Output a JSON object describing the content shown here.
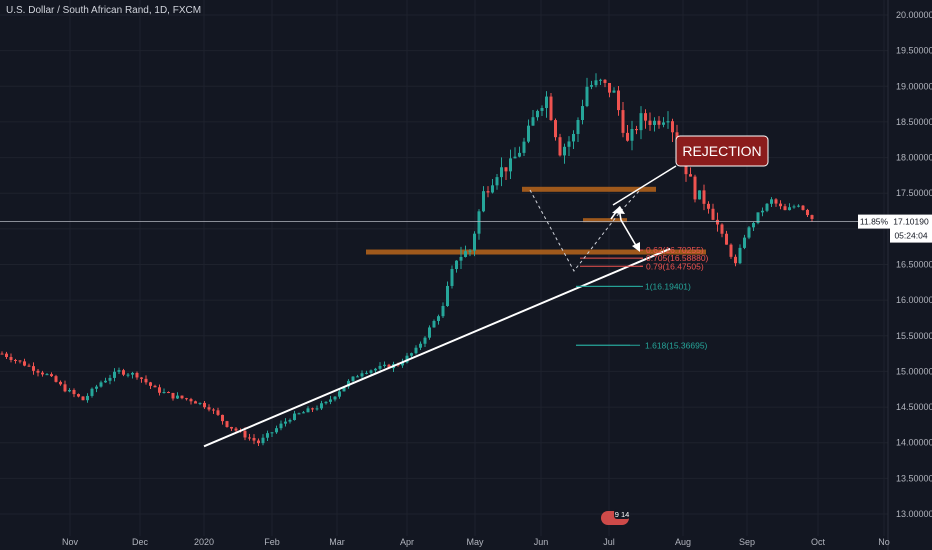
{
  "header": {
    "title": "U.S. Dollar / South African Rand, 1D, FXCM"
  },
  "chart_data": {
    "type": "candlestick",
    "title": "U.S. Dollar / South African Rand, 1D, FXCM",
    "ylim": [
      12.9,
      20.05
    ],
    "y_ticks": [
      "13.00000",
      "13.50000",
      "14.00000",
      "14.50000",
      "15.00000",
      "15.50000",
      "16.00000",
      "16.50000",
      "17.00000",
      "17.50000",
      "18.00000",
      "18.50000",
      "19.00000",
      "19.50000",
      "20.00000"
    ],
    "x_ticks": [
      "Nov",
      "Dec",
      "2020",
      "Feb",
      "Mar",
      "Apr",
      "May",
      "Jun",
      "Jul",
      "Aug",
      "Sep",
      "Oct",
      "No"
    ],
    "current_price": "17.10190",
    "current_pct": "11.85%",
    "countdown": "05:24:04",
    "annotation": "REJECTION",
    "fib_levels": [
      {
        "label": "0.62(16.70255)",
        "value": 16.70255,
        "color": "#ef5350"
      },
      {
        "label": "0.705(16.58880)",
        "value": 16.5888,
        "color": "#ef5350"
      },
      {
        "label": "0.79(16.47505)",
        "value": 16.47505,
        "color": "#ef5350"
      },
      {
        "label": "1(16.19401)",
        "value": 16.19401,
        "color": "#26a69a"
      },
      {
        "label": "1.618(15.36695)",
        "value": 15.36695,
        "color": "#26a69a"
      }
    ],
    "event_badge": "9 14",
    "zones": [
      {
        "y_from": 17.52,
        "y_to": 17.59,
        "color": "#b8651b"
      },
      {
        "y_from": 16.64,
        "y_to": 16.71,
        "color": "#b8651b"
      }
    ],
    "trendline": {
      "start": 13.95,
      "end": 16.72
    },
    "anchors": [
      {
        "t": 0,
        "v": 15.25
      },
      {
        "t": 5,
        "v": 15.1
      },
      {
        "t": 10,
        "v": 14.95
      },
      {
        "t": 14,
        "v": 14.75
      },
      {
        "t": 18,
        "v": 14.6
      },
      {
        "t": 22,
        "v": 14.85
      },
      {
        "t": 26,
        "v": 15.0
      },
      {
        "t": 30,
        "v": 14.95
      },
      {
        "t": 34,
        "v": 14.75
      },
      {
        "t": 38,
        "v": 14.65
      },
      {
        "t": 42,
        "v": 14.6
      },
      {
        "t": 46,
        "v": 14.5
      },
      {
        "t": 50,
        "v": 14.25
      },
      {
        "t": 54,
        "v": 14.1
      },
      {
        "t": 57,
        "v": 14.0
      },
      {
        "t": 60,
        "v": 14.15
      },
      {
        "t": 64,
        "v": 14.35
      },
      {
        "t": 68,
        "v": 14.45
      },
      {
        "t": 72,
        "v": 14.55
      },
      {
        "t": 76,
        "v": 14.8
      },
      {
        "t": 80,
        "v": 15.0
      },
      {
        "t": 84,
        "v": 15.05
      },
      {
        "t": 88,
        "v": 15.1
      },
      {
        "t": 92,
        "v": 15.3
      },
      {
        "t": 95,
        "v": 15.6
      },
      {
        "t": 98,
        "v": 15.9
      },
      {
        "t": 101,
        "v": 16.6
      },
      {
        "t": 104,
        "v": 16.7
      },
      {
        "t": 107,
        "v": 17.5
      },
      {
        "t": 110,
        "v": 17.8
      },
      {
        "t": 113,
        "v": 17.9
      },
      {
        "t": 116,
        "v": 18.2
      },
      {
        "t": 119,
        "v": 18.7
      },
      {
        "t": 121,
        "v": 18.85
      },
      {
        "t": 124,
        "v": 18.1
      },
      {
        "t": 127,
        "v": 18.3
      },
      {
        "t": 130,
        "v": 19.0
      },
      {
        "t": 133,
        "v": 19.05
      },
      {
        "t": 136,
        "v": 18.9
      },
      {
        "t": 139,
        "v": 18.2
      },
      {
        "t": 142,
        "v": 18.55
      },
      {
        "t": 145,
        "v": 18.5
      },
      {
        "t": 148,
        "v": 18.6
      },
      {
        "t": 151,
        "v": 18.0
      },
      {
        "t": 154,
        "v": 17.5
      },
      {
        "t": 157,
        "v": 17.35
      },
      {
        "t": 160,
        "v": 16.9
      },
      {
        "t": 163,
        "v": 16.5
      },
      {
        "t": 165,
        "v": 16.9
      },
      {
        "t": 168,
        "v": 17.2
      },
      {
        "t": 171,
        "v": 17.4
      },
      {
        "t": 174,
        "v": 17.25
      },
      {
        "t": 177,
        "v": 17.35
      },
      {
        "t": 180,
        "v": 17.15
      }
    ]
  }
}
